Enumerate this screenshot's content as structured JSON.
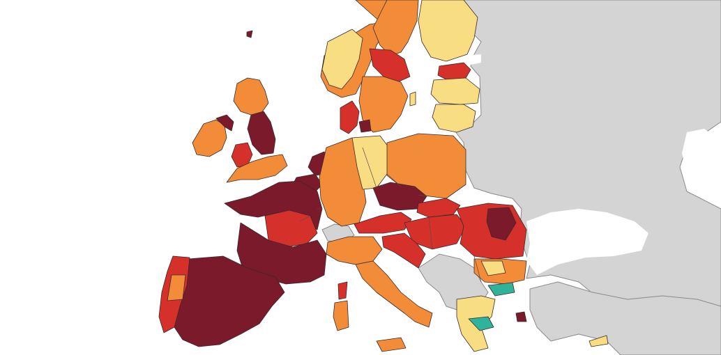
{
  "map": {
    "colors": {
      "sea": "#ffffff",
      "non_eu": "#d4d4d4",
      "green": "#2fb39a",
      "yellow": "#f9dd83",
      "orange": "#f28c39",
      "red": "#d6302b",
      "dark_red": "#7a1a2a"
    },
    "regions": [
      {
        "id": "iceland-north",
        "color": "dark_red"
      },
      {
        "id": "ireland",
        "color": "orange"
      },
      {
        "id": "northern-ireland",
        "color": "dark_red"
      },
      {
        "id": "scotland",
        "color": "orange"
      },
      {
        "id": "england-north",
        "color": "dark_red"
      },
      {
        "id": "wales",
        "color": "red"
      },
      {
        "id": "england-south",
        "color": "orange"
      },
      {
        "id": "norway-south",
        "color": "orange"
      },
      {
        "id": "norway-west",
        "color": "yellow"
      },
      {
        "id": "sweden-north",
        "color": "orange"
      },
      {
        "id": "sweden-central",
        "color": "red"
      },
      {
        "id": "sweden-south",
        "color": "orange"
      },
      {
        "id": "finland",
        "color": "yellow"
      },
      {
        "id": "estonia",
        "color": "red"
      },
      {
        "id": "latvia",
        "color": "yellow"
      },
      {
        "id": "lithuania",
        "color": "yellow"
      },
      {
        "id": "denmark",
        "color": "red"
      },
      {
        "id": "netherlands",
        "color": "dark_red"
      },
      {
        "id": "belgium",
        "color": "dark_red"
      },
      {
        "id": "germany-west",
        "color": "orange"
      },
      {
        "id": "germany-east",
        "color": "yellow"
      },
      {
        "id": "poland",
        "color": "orange"
      },
      {
        "id": "czechia",
        "color": "dark_red"
      },
      {
        "id": "austria",
        "color": "red"
      },
      {
        "id": "slovakia",
        "color": "red"
      },
      {
        "id": "hungary",
        "color": "red"
      },
      {
        "id": "romania",
        "color": "red"
      },
      {
        "id": "romania-east",
        "color": "dark_red"
      },
      {
        "id": "bulgaria",
        "color": "orange"
      },
      {
        "id": "greece-north",
        "color": "green"
      },
      {
        "id": "greece",
        "color": "yellow"
      },
      {
        "id": "france-north",
        "color": "dark_red"
      },
      {
        "id": "france-center",
        "color": "red"
      },
      {
        "id": "france-south",
        "color": "dark_red"
      },
      {
        "id": "spain",
        "color": "dark_red"
      },
      {
        "id": "portugal",
        "color": "red"
      },
      {
        "id": "italy-north",
        "color": "orange"
      },
      {
        "id": "italy-south",
        "color": "orange"
      },
      {
        "id": "sicily",
        "color": "orange"
      },
      {
        "id": "sardinia",
        "color": "orange"
      },
      {
        "id": "corsica",
        "color": "red"
      },
      {
        "id": "slovenia-croatia",
        "color": "red"
      },
      {
        "id": "cyprus",
        "color": "yellow"
      }
    ]
  }
}
